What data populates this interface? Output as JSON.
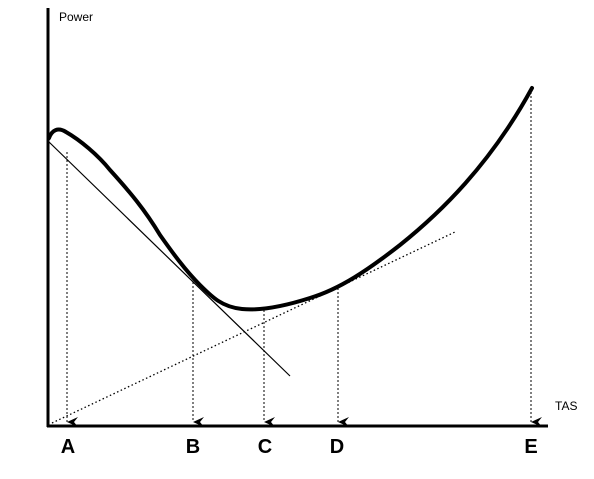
{
  "y_axis_label": "Power",
  "x_axis_label": "TAS",
  "points": [
    {
      "key": "A",
      "label": "A"
    },
    {
      "key": "B",
      "label": "B"
    },
    {
      "key": "C",
      "label": "C"
    },
    {
      "key": "D",
      "label": "D"
    },
    {
      "key": "E",
      "label": "E"
    }
  ]
}
